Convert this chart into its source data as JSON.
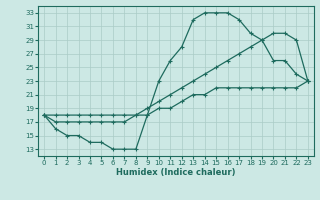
{
  "title": "",
  "xlabel": "Humidex (Indice chaleur)",
  "ylabel": "",
  "bg_color": "#cce8e4",
  "line_color": "#1e6b5e",
  "grid_color": "#aaccc7",
  "xlim": [
    -0.5,
    23.5
  ],
  "ylim": [
    12,
    34
  ],
  "xticks": [
    0,
    1,
    2,
    3,
    4,
    5,
    6,
    7,
    8,
    9,
    10,
    11,
    12,
    13,
    14,
    15,
    16,
    17,
    18,
    19,
    20,
    21,
    22,
    23
  ],
  "yticks": [
    13,
    15,
    17,
    19,
    21,
    23,
    25,
    27,
    29,
    31,
    33
  ],
  "s1": [
    18,
    16,
    15,
    15,
    14,
    14,
    13,
    13,
    13,
    18,
    23,
    26,
    28,
    32,
    33,
    33,
    33,
    32,
    30,
    29,
    26,
    26,
    24,
    23
  ],
  "s2": [
    18,
    17,
    17,
    17,
    17,
    17,
    17,
    17,
    18,
    19,
    20,
    21,
    22,
    23,
    24,
    25,
    26,
    27,
    28,
    29,
    30,
    30,
    29,
    23
  ],
  "s3": [
    18,
    18,
    18,
    18,
    18,
    18,
    18,
    18,
    18,
    18,
    19,
    19,
    20,
    21,
    21,
    22,
    22,
    22,
    22,
    22,
    22,
    22,
    22,
    23
  ]
}
